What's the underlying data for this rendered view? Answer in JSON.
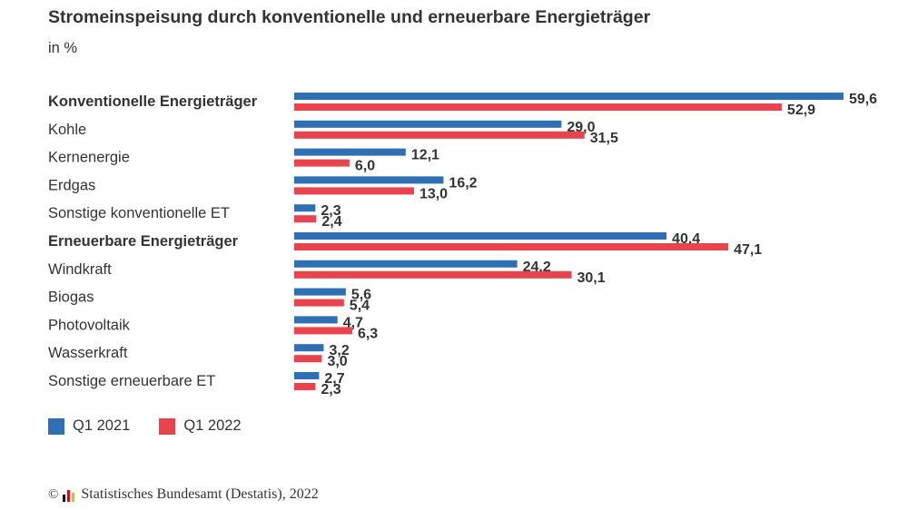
{
  "chart_data": {
    "type": "bar",
    "orientation": "horizontal",
    "title": "Stromeinspeisung durch konventionelle und erneuerbare Energieträger",
    "subtitle": "in %",
    "categories": [
      "Konventionelle Energieträger",
      "Kohle",
      "Kernenergie",
      "Erdgas",
      "Sonstige konventionelle ET",
      "Erneuerbare Energieträger",
      "Windkraft",
      "Biogas",
      "Photovoltaik",
      "Wasserkraft",
      "Sonstige erneuerbare ET"
    ],
    "bold_categories": [
      "Konventionelle Energieträger",
      "Erneuerbare Energieträger"
    ],
    "series": [
      {
        "name": "Q1 2021",
        "color": "#2f6fb3",
        "values": [
          59.6,
          29.0,
          12.1,
          16.2,
          2.3,
          40.4,
          24.2,
          5.6,
          4.7,
          3.2,
          2.7
        ]
      },
      {
        "name": "Q1 2022",
        "color": "#e8434e",
        "values": [
          52.9,
          31.5,
          6.0,
          13.0,
          2.4,
          47.1,
          30.1,
          5.4,
          6.3,
          3.0,
          2.3
        ]
      }
    ],
    "decimal_separator": ",",
    "xlim": [
      0,
      60
    ],
    "grid": false,
    "legend_position": "bottom-left"
  },
  "legend": {
    "q1_2021": "Q1 2021",
    "q1_2022": "Q1 2022"
  },
  "source": {
    "copyright_symbol": "©",
    "text": "Statistisches Bundesamt (Destatis), 2022"
  }
}
